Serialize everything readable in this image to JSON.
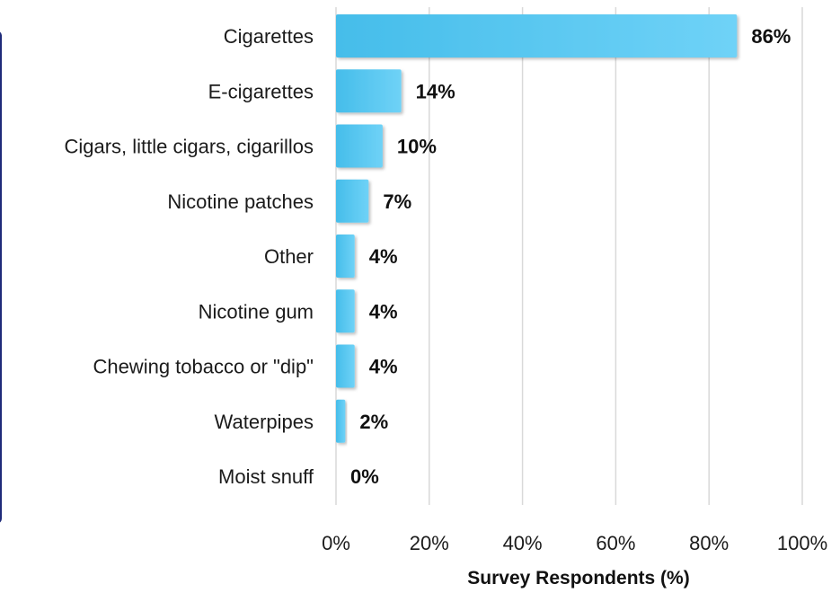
{
  "chart_data": {
    "type": "bar",
    "orientation": "horizontal",
    "categories": [
      "Cigarettes",
      "E-cigarettes",
      "Cigars, little cigars, cigarillos",
      "Nicotine patches",
      "Other",
      "Nicotine gum",
      "Chewing tobacco or \"dip\"",
      "Waterpipes",
      "Moist snuff"
    ],
    "values": [
      86,
      14,
      10,
      7,
      4,
      4,
      4,
      2,
      0
    ],
    "data_labels": [
      "86%",
      "14%",
      "10%",
      "7%",
      "4%",
      "4%",
      "4%",
      "2%",
      "0%"
    ],
    "xlabel": "Survey Respondents (%)",
    "xlim": [
      0,
      100
    ],
    "xticks": [
      0,
      20,
      40,
      60,
      80,
      100
    ],
    "xtick_labels": [
      "0%",
      "20%",
      "40%",
      "60%",
      "80%",
      "100%"
    ],
    "grid": "vertical",
    "bar_color": "#4fc3f0",
    "bar_color_light": "#6fd2f7",
    "grid_color": "#d9d9d9",
    "frame_color": "#1f2b7a"
  }
}
